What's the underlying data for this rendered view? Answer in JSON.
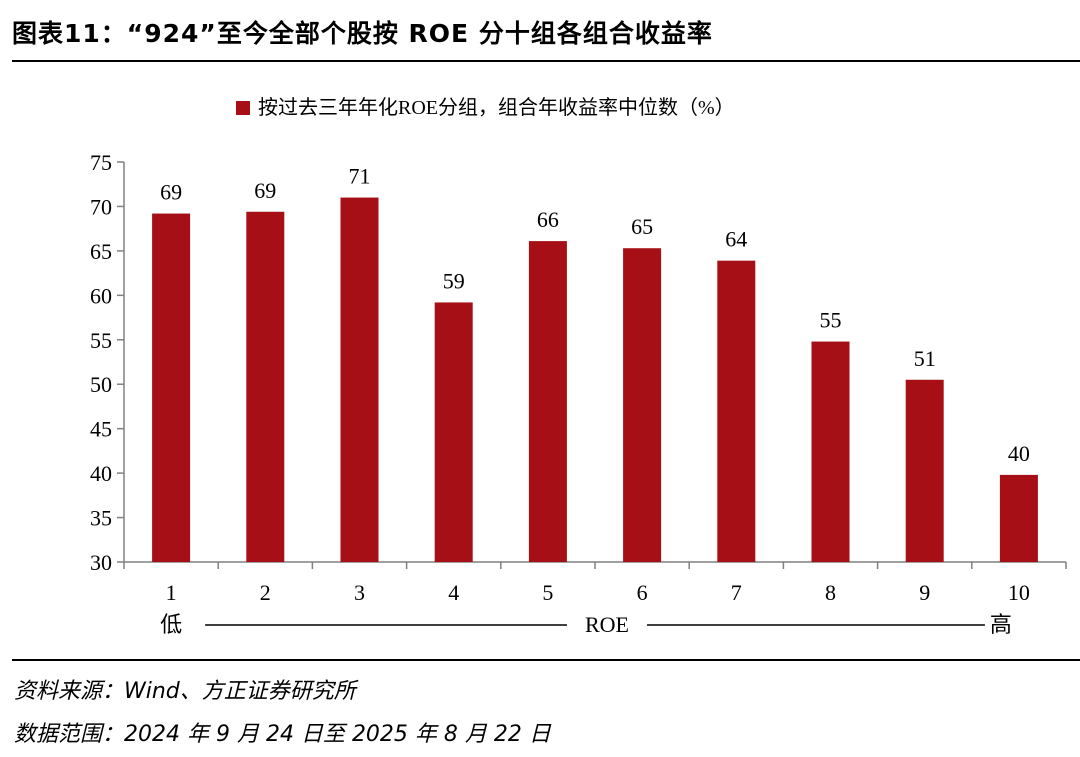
{
  "figure_title": "图表11：“924”至今全部个股按 ROE 分十组各组合收益率",
  "source_line": "资料来源：Wind、方正证券研究所",
  "range_line": "数据范围：2024 年 9 月 24 日至 2025 年 8 月 22 日",
  "colors": {
    "bar": "#A50F15",
    "axis": "#808080",
    "text": "#000000"
  },
  "chart_data": {
    "type": "bar",
    "title": "",
    "legend": [
      "按过去三年年化ROE分组，组合年收益率中位数（%）"
    ],
    "legend_position": "top-center",
    "categories": [
      "1",
      "2",
      "3",
      "4",
      "5",
      "6",
      "7",
      "8",
      "9",
      "10"
    ],
    "series": [
      {
        "name": "按过去三年年化ROE分组，组合年收益率中位数（%）",
        "values": [
          69.2,
          69.4,
          71.0,
          59.2,
          66.1,
          65.3,
          63.9,
          54.8,
          50.5,
          39.8
        ],
        "labels": [
          "69",
          "69",
          "71",
          "59",
          "66",
          "65",
          "64",
          "55",
          "51",
          "40"
        ]
      }
    ],
    "ylim": [
      30,
      75
    ],
    "yticks": [
      30,
      35,
      40,
      45,
      50,
      55,
      60,
      65,
      70,
      75
    ],
    "grid": false,
    "xaxis_annotation": {
      "low": "低",
      "label": "ROE",
      "high": "高"
    }
  }
}
